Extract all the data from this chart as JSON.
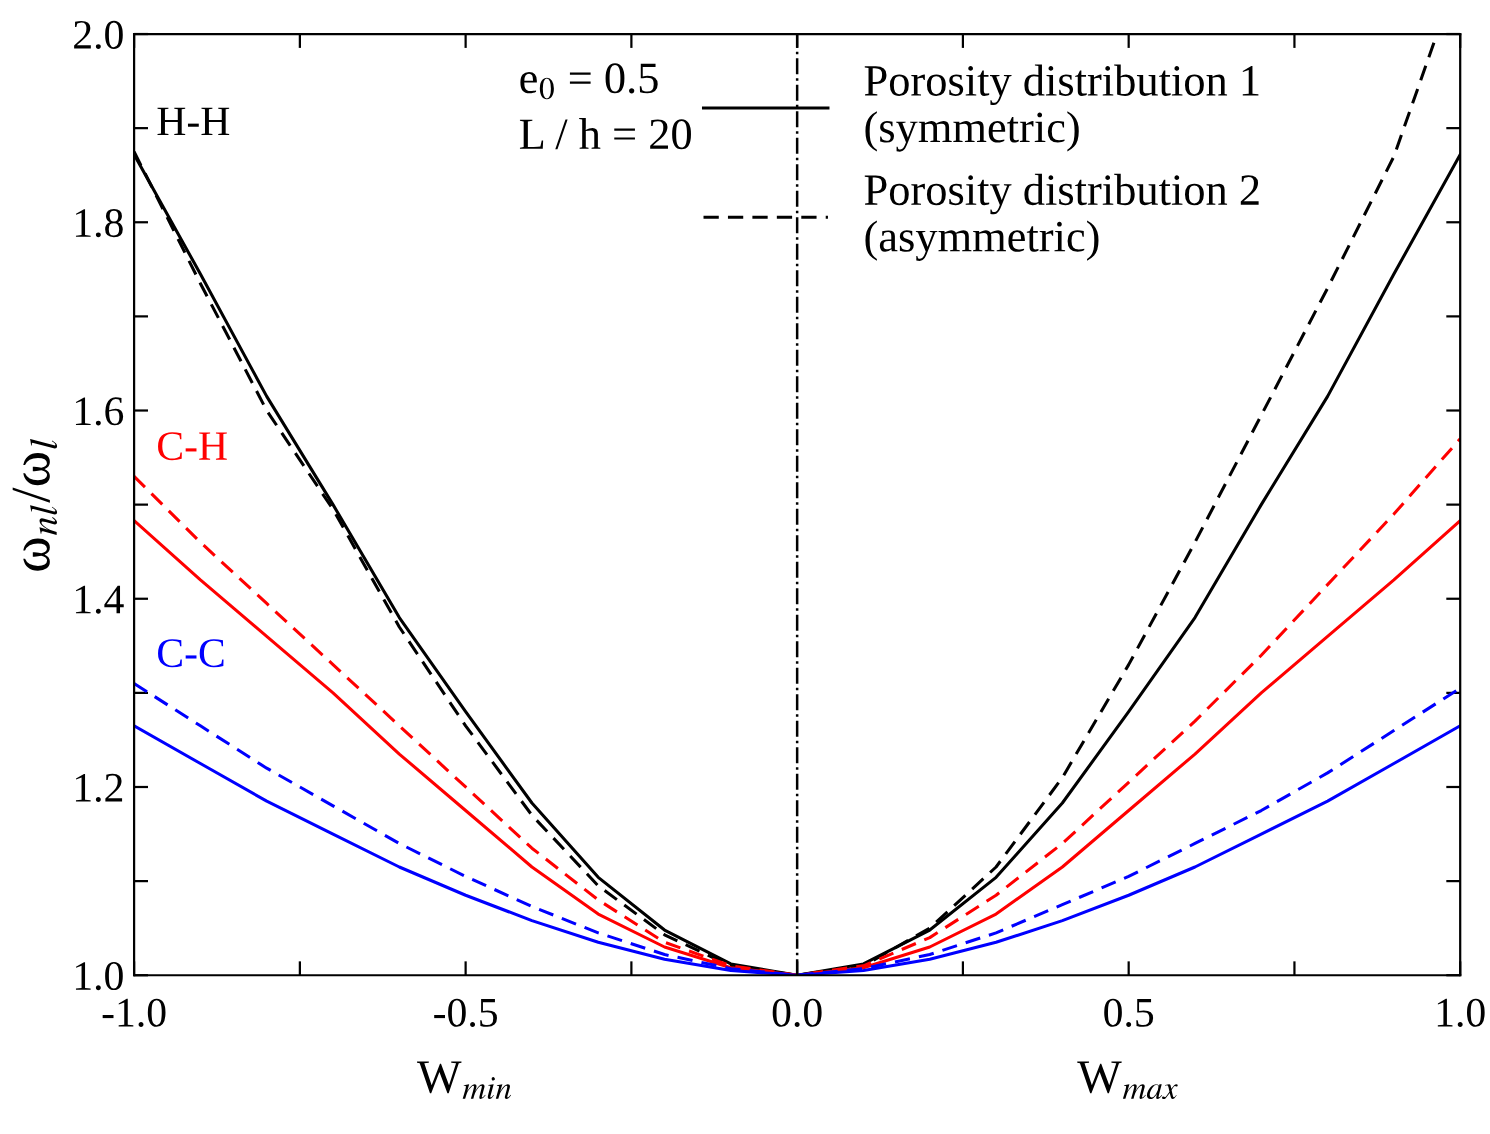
{
  "chart_data": {
    "type": "line",
    "ylabel": "ω$_{nl}$/ω$_{l}$",
    "x": [
      -1,
      -0.9,
      -0.8,
      -0.7,
      -0.6,
      -0.5,
      -0.4,
      -0.3,
      -0.2,
      -0.1,
      0,
      0.1,
      0.2,
      0.3,
      0.4,
      0.5,
      0.6,
      0.7,
      0.8,
      0.9,
      1
    ],
    "series": [
      {
        "name": "Porosity distribution 1\n(symmetric)",
        "color": "#000000",
        "line_style": "solid",
        "values": [
          1.872,
          1.745,
          1.615,
          1.5,
          1.38,
          1.28,
          1.183,
          1.104,
          1.048,
          1.012,
          1.0,
          1.012,
          1.048,
          1.104,
          1.183,
          1.28,
          1.38,
          1.5,
          1.615,
          1.745,
          1.872
        ]
      },
      {
        "name": "Porosity distribution 2\n(asymmetric)",
        "color": "#000000",
        "line_style": "dashed",
        "x": [
          -1,
          -0.9,
          -0.8,
          -0.7,
          -0.6,
          -0.5,
          -0.4,
          -0.3,
          -0.2,
          -0.1,
          0,
          0.1,
          0.2,
          0.3,
          0.4,
          0.5,
          0.6,
          0.7,
          0.8,
          0.9,
          0.965
        ],
        "values": [
          1.875,
          1.735,
          1.6,
          1.495,
          1.37,
          1.265,
          1.17,
          1.095,
          1.043,
          1.01,
          1.0,
          1.01,
          1.05,
          1.115,
          1.21,
          1.33,
          1.46,
          1.595,
          1.73,
          1.87,
          2.0
        ]
      },
      {
        "color": "#ff0000",
        "line_style": "solid",
        "values": [
          1.483,
          1.42,
          1.36,
          1.3,
          1.235,
          1.175,
          1.115,
          1.065,
          1.03,
          1.008,
          1.0,
          1.008,
          1.03,
          1.065,
          1.115,
          1.175,
          1.235,
          1.3,
          1.36,
          1.42,
          1.483
        ]
      },
      {
        "color": "#ff0000",
        "line_style": "dashed",
        "values": [
          1.53,
          1.46,
          1.395,
          1.33,
          1.265,
          1.2,
          1.135,
          1.08,
          1.035,
          1.01,
          1.0,
          1.01,
          1.04,
          1.085,
          1.14,
          1.205,
          1.27,
          1.34,
          1.415,
          1.49,
          1.57
        ]
      },
      {
        "color": "#0000ff",
        "line_style": "solid",
        "values": [
          1.265,
          1.225,
          1.185,
          1.15,
          1.115,
          1.085,
          1.058,
          1.035,
          1.017,
          1.005,
          1.0,
          1.005,
          1.017,
          1.035,
          1.058,
          1.085,
          1.115,
          1.15,
          1.185,
          1.225,
          1.265
        ]
      },
      {
        "color": "#0000ff",
        "line_style": "dashed",
        "values": [
          1.31,
          1.265,
          1.22,
          1.18,
          1.14,
          1.105,
          1.073,
          1.045,
          1.022,
          1.007,
          1.0,
          1.007,
          1.022,
          1.045,
          1.075,
          1.105,
          1.14,
          1.175,
          1.215,
          1.26,
          1.305
        ]
      }
    ],
    "xlim": [
      -1,
      1
    ],
    "ylim": [
      1.0,
      2.0
    ],
    "xticks": [
      {
        "value": -1,
        "label": "-1.0"
      },
      {
        "value": -0.75,
        "label": null
      },
      {
        "value": -0.5,
        "label": "-0.5"
      },
      {
        "value": -0.25,
        "label": null
      },
      {
        "value": 0,
        "label": "0.0"
      },
      {
        "value": 0.25,
        "label": null
      },
      {
        "value": 0.5,
        "label": "0.5"
      },
      {
        "value": 0.75,
        "label": null
      },
      {
        "value": 1,
        "label": "1.0"
      }
    ],
    "yticks": [
      {
        "value": 1.0,
        "label": "1.0"
      },
      {
        "value": 1.1,
        "label": null
      },
      {
        "value": 1.2,
        "label": "1.2"
      },
      {
        "value": 1.3,
        "label": null
      },
      {
        "value": 1.4,
        "label": "1.4"
      },
      {
        "value": 1.5,
        "label": null
      },
      {
        "value": 1.6,
        "label": "1.6"
      },
      {
        "value": 1.7,
        "label": null
      },
      {
        "value": 1.8,
        "label": "1.8"
      },
      {
        "value": 1.9,
        "label": null
      },
      {
        "value": 2.0,
        "label": "2.0"
      }
    ],
    "ref_lines": [
      {
        "axis": "x",
        "value": 0,
        "color": "#000000",
        "line_style": "dashdot"
      }
    ],
    "annotations": [
      "H-H",
      "C-H",
      "C-C",
      "e$_{0}$ = 0.5\nL / h = 20",
      "W$_{min}$",
      "W$_{max}$"
    ],
    "legend": "top right",
    "grid": false,
    "marker": "none"
  }
}
